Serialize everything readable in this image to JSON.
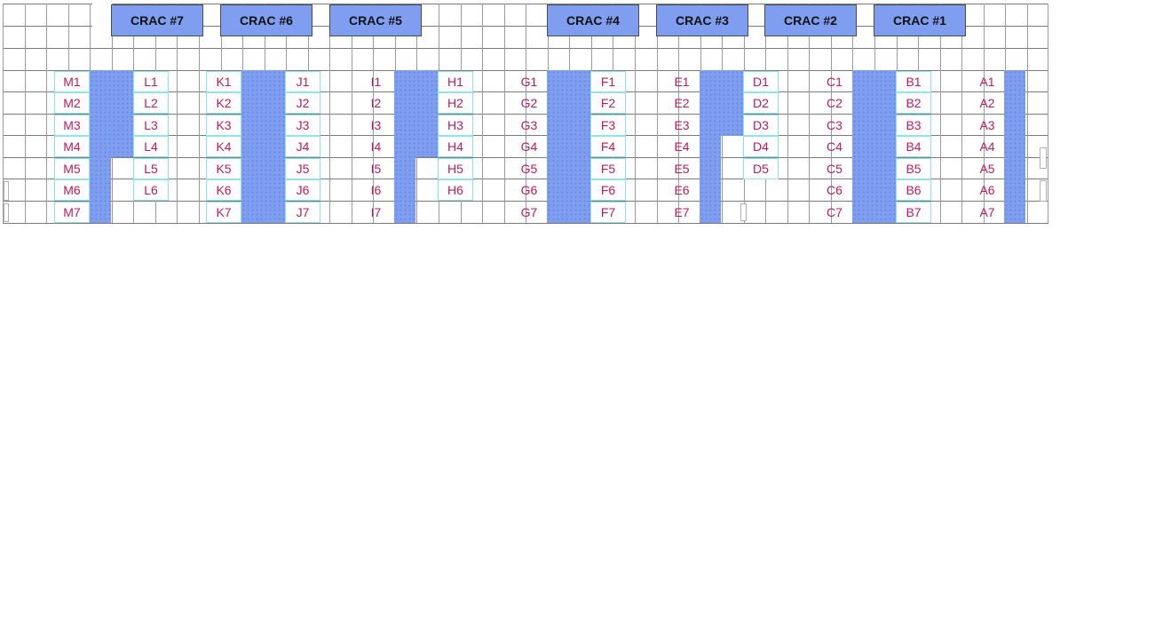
{
  "colors": {
    "crac_fill": "#7f9ef0",
    "aisle_fill": "#7f9ef0",
    "rack_label": "#c2185b",
    "rack_border": "#8fe3ec",
    "grid_line": "#7a7a7a"
  },
  "crac_units": [
    {
      "label": "CRAC #7"
    },
    {
      "label": "CRAC #6"
    },
    {
      "label": "CRAC #5"
    },
    {
      "label": "CRAC #4"
    },
    {
      "label": "CRAC #3"
    },
    {
      "label": "CRAC #2"
    },
    {
      "label": "CRAC #1"
    }
  ],
  "rack_rows": [
    {
      "row": "M",
      "labels": [
        "M1",
        "M2",
        "M3",
        "M4",
        "M5",
        "M6",
        "M7"
      ]
    },
    {
      "row": "L",
      "labels": [
        "L1",
        "L2",
        "L3",
        "L4",
        "L5",
        "L6"
      ]
    },
    {
      "row": "K",
      "labels": [
        "K1",
        "K2",
        "K3",
        "K4",
        "K5",
        "K6",
        "K7"
      ]
    },
    {
      "row": "J",
      "labels": [
        "J1",
        "J2",
        "J3",
        "J4",
        "J5",
        "J6",
        "J7"
      ]
    },
    {
      "row": "I",
      "labels": [
        "I1",
        "I2",
        "I3",
        "I4",
        "I5",
        "I6",
        "I7"
      ]
    },
    {
      "row": "H",
      "labels": [
        "H1",
        "H2",
        "H3",
        "H4",
        "H5",
        "H6"
      ]
    },
    {
      "row": "G",
      "labels": [
        "G1",
        "G2",
        "G3",
        "G4",
        "G5",
        "G6",
        "G7"
      ]
    },
    {
      "row": "F",
      "labels": [
        "F1",
        "F2",
        "F3",
        "F4",
        "F5",
        "F6",
        "F7"
      ]
    },
    {
      "row": "E",
      "labels": [
        "E1",
        "E2",
        "E3",
        "E4",
        "E5",
        "E6",
        "E7"
      ]
    },
    {
      "row": "D",
      "labels": [
        "D1",
        "D2",
        "D3",
        "D4",
        "D5"
      ]
    },
    {
      "row": "C",
      "labels": [
        "C1",
        "C2",
        "C3",
        "C4",
        "C5",
        "C6",
        "C7"
      ]
    },
    {
      "row": "B",
      "labels": [
        "B1",
        "B2",
        "B3",
        "B4",
        "B5",
        "B6",
        "B7"
      ]
    },
    {
      "row": "A",
      "labels": [
        "A1",
        "A2",
        "A3",
        "A4",
        "A5",
        "A6",
        "A7"
      ]
    }
  ]
}
